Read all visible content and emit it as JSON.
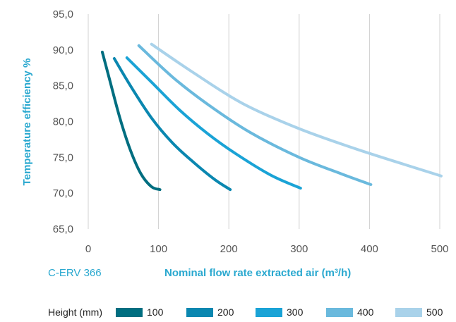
{
  "chart_data": {
    "type": "line",
    "model_label": "C-ERV 366",
    "xlabel": "Nominal flow rate extracted air (m³/h)",
    "ylabel": "Temperature efficiency %",
    "xlim": [
      0,
      500
    ],
    "ylim": [
      65,
      95
    ],
    "x_ticks": [
      "0",
      "100",
      "200",
      "300",
      "400",
      "500"
    ],
    "y_ticks": [
      "65,0",
      "70,0",
      "75,0",
      "80,0",
      "85,0",
      "90,0",
      "95,0"
    ],
    "grid": "vertical",
    "legend": {
      "title": "Height (mm)",
      "placement": "bottom"
    },
    "series": [
      {
        "name": "100",
        "color": "#006e80",
        "points": [
          [
            20,
            89.7
          ],
          [
            30,
            86.0
          ],
          [
            45,
            80.5
          ],
          [
            60,
            76.0
          ],
          [
            75,
            72.7
          ],
          [
            90,
            70.9
          ],
          [
            102,
            70.5
          ]
        ]
      },
      {
        "name": "200",
        "color": "#0a87b0",
        "points": [
          [
            37,
            88.8
          ],
          [
            60,
            85.0
          ],
          [
            90,
            80.5
          ],
          [
            120,
            77.0
          ],
          [
            150,
            74.3
          ],
          [
            180,
            71.9
          ],
          [
            202,
            70.5
          ]
        ]
      },
      {
        "name": "300",
        "color": "#1aa3d6",
        "points": [
          [
            55,
            88.9
          ],
          [
            90,
            85.5
          ],
          [
            130,
            81.6
          ],
          [
            170,
            78.3
          ],
          [
            210,
            75.5
          ],
          [
            260,
            72.5
          ],
          [
            302,
            70.7
          ]
        ]
      },
      {
        "name": "400",
        "color": "#6ab9dd",
        "points": [
          [
            72,
            90.6
          ],
          [
            120,
            86.2
          ],
          [
            170,
            82.4
          ],
          [
            230,
            78.5
          ],
          [
            300,
            75.0
          ],
          [
            360,
            72.7
          ],
          [
            402,
            71.2
          ]
        ]
      },
      {
        "name": "500",
        "color": "#a9d2ea",
        "points": [
          [
            90,
            90.8
          ],
          [
            150,
            86.8
          ],
          [
            220,
            82.5
          ],
          [
            300,
            79.0
          ],
          [
            380,
            76.2
          ],
          [
            450,
            74.0
          ],
          [
            502,
            72.4
          ]
        ]
      }
    ]
  }
}
